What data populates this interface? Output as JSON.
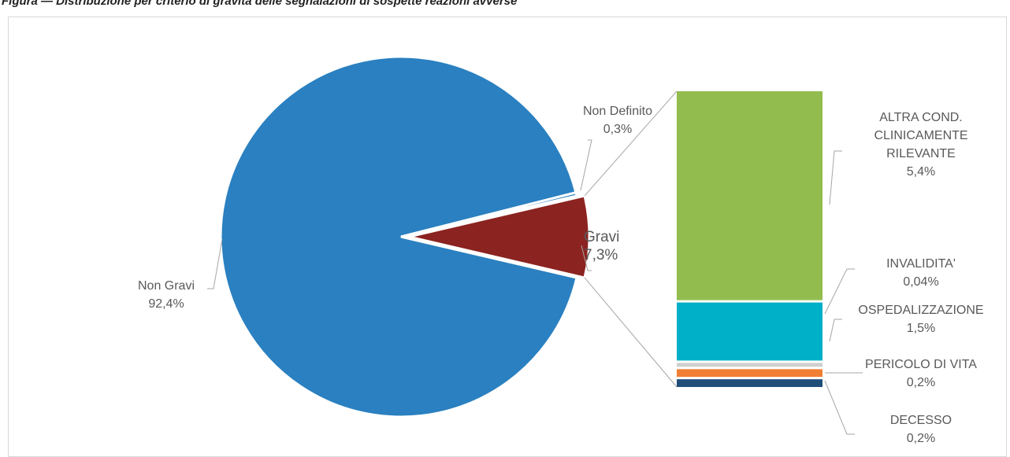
{
  "caption": "Figura — Distribuzione per criterio di gravità delle segnalazioni di sospette reazioni avverse",
  "chart_data": {
    "type": "bar-of-pie",
    "title": "",
    "pie": {
      "slices": [
        {
          "name": "Non Gravi",
          "value": 92.4,
          "label": "92,4%",
          "color": "#2a80c0"
        },
        {
          "name": "Gravi",
          "value": 7.3,
          "label": "7,3%",
          "color": "#8b2320"
        },
        {
          "name": "Non Definito",
          "value": 0.3,
          "label": "0,3%",
          "color": "#2a80c0"
        }
      ]
    },
    "bar": {
      "parent": "Gravi",
      "segments": [
        {
          "name": "ALTRA COND. CLINICAMENTE RILEVANTE",
          "lines": [
            "ALTRA COND.",
            "CLINICAMENTE",
            "RILEVANTE"
          ],
          "value": 5.4,
          "label": "5,4%",
          "color": "#92bd4e"
        },
        {
          "name": "OSPEDALIZZAZIONE",
          "lines": [
            "OSPEDALIZZAZIONE"
          ],
          "value": 1.5,
          "label": "1,5%",
          "color": "#00afc8"
        },
        {
          "name": "INVALIDITA'",
          "lines": [
            "INVALIDITA'"
          ],
          "value": 0.04,
          "label": "0,04%",
          "color": "#cfcfcf"
        },
        {
          "name": "PERICOLO DI VITA",
          "lines": [
            "PERICOLO DI VITA"
          ],
          "value": 0.2,
          "label": "0,2%",
          "color": "#f07f35"
        },
        {
          "name": "DECESSO",
          "lines": [
            "DECESSO"
          ],
          "value": 0.2,
          "label": "0,2%",
          "color": "#1f4e79"
        }
      ]
    }
  }
}
